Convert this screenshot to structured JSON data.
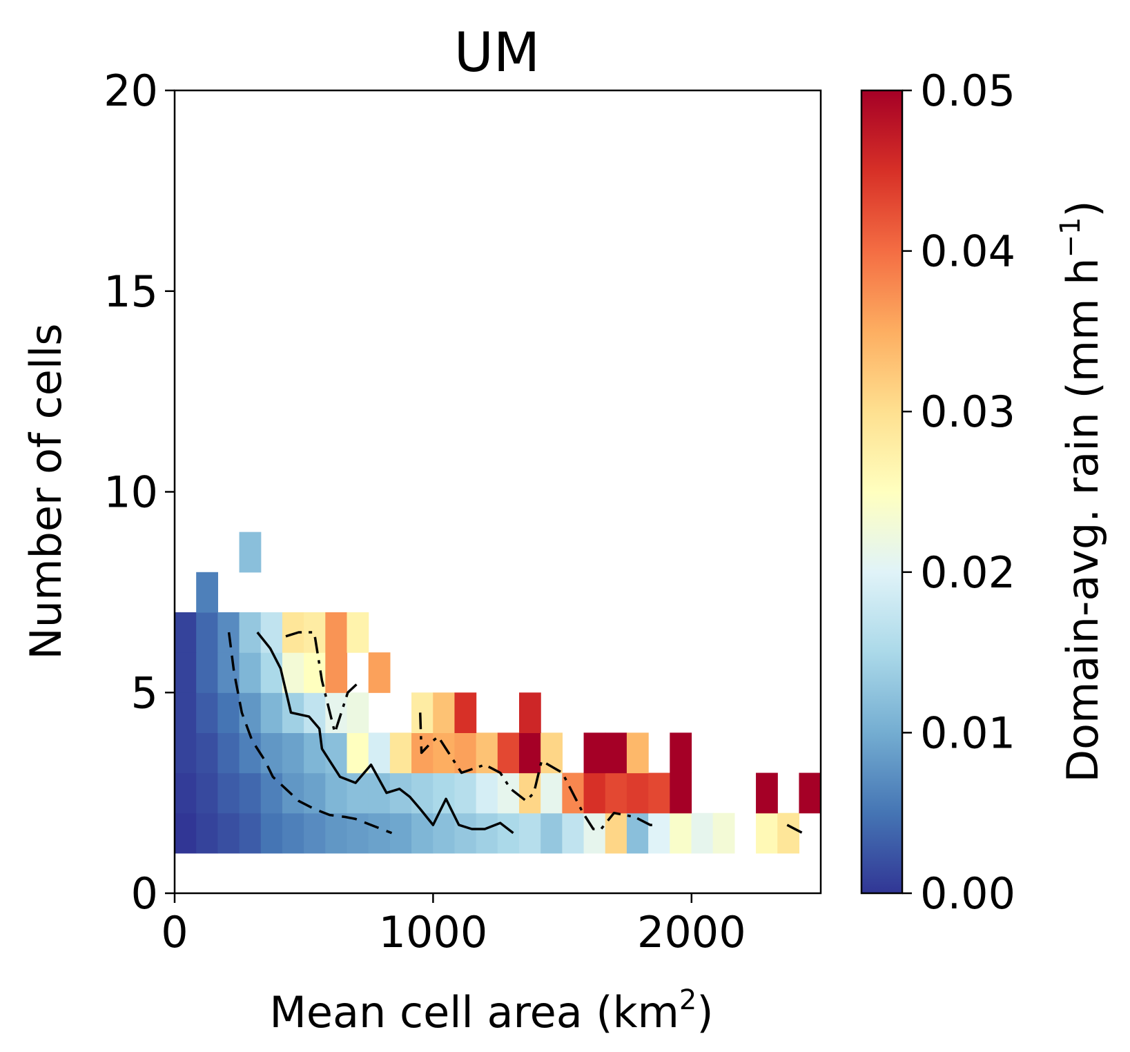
{
  "chart_data": {
    "type": "heatmap",
    "title": "UM",
    "xlabel": "Mean cell area (km",
    "xlabel_sup": "2",
    "xlabel_end": ")",
    "ylabel": "Number of cells",
    "xlim": [
      0,
      2500
    ],
    "ylim": [
      0,
      20
    ],
    "x_ticks": [
      0,
      1000,
      2000
    ],
    "x_tick_labels": [
      "0",
      "1000",
      "2000"
    ],
    "y_ticks": [
      0,
      5,
      10,
      15,
      20
    ],
    "y_tick_labels": [
      "0",
      "5",
      "10",
      "15",
      "20"
    ],
    "x_bin_width": 83.3,
    "y_bin_height": 1,
    "colorbar": {
      "label": "Domain-avg. rain (mm h",
      "label_sup": "−1",
      "label_end": ")",
      "range": [
        0,
        0.05
      ],
      "ticks": [
        0,
        0.01,
        0.02,
        0.03,
        0.04,
        0.05
      ],
      "tick_labels": [
        "0.00",
        "0.01",
        "0.02",
        "0.03",
        "0.04",
        "0.05"
      ],
      "colormap": "RdYlBu_r"
    },
    "cells": [
      [
        0,
        1,
        0.0
      ],
      [
        1,
        1,
        0.001
      ],
      [
        2,
        1,
        0.002
      ],
      [
        3,
        1,
        0.003
      ],
      [
        4,
        1,
        0.005
      ],
      [
        5,
        1,
        0.006
      ],
      [
        6,
        1,
        0.007
      ],
      [
        7,
        1,
        0.008
      ],
      [
        8,
        1,
        0.0085
      ],
      [
        9,
        1,
        0.009
      ],
      [
        10,
        1,
        0.0095
      ],
      [
        11,
        1,
        0.011
      ],
      [
        12,
        1,
        0.012
      ],
      [
        13,
        1,
        0.013
      ],
      [
        14,
        1,
        0.014
      ],
      [
        15,
        1,
        0.015
      ],
      [
        16,
        1,
        0.016
      ],
      [
        17,
        1,
        0.013
      ],
      [
        18,
        1,
        0.017
      ],
      [
        19,
        1,
        0.021
      ],
      [
        20,
        1,
        0.031
      ],
      [
        21,
        1,
        0.012
      ],
      [
        22,
        1,
        0.02
      ],
      [
        23,
        1,
        0.024
      ],
      [
        24,
        1,
        0.021
      ],
      [
        25,
        1,
        0.023
      ],
      [
        27,
        1,
        0.026
      ],
      [
        28,
        1,
        0.029
      ],
      [
        0,
        2,
        0.0005
      ],
      [
        1,
        2,
        0.0015
      ],
      [
        2,
        2,
        0.003
      ],
      [
        3,
        2,
        0.004
      ],
      [
        4,
        2,
        0.006
      ],
      [
        5,
        2,
        0.008
      ],
      [
        6,
        2,
        0.009
      ],
      [
        7,
        2,
        0.011
      ],
      [
        8,
        2,
        0.012
      ],
      [
        9,
        2,
        0.012
      ],
      [
        10,
        2,
        0.013
      ],
      [
        11,
        2,
        0.014
      ],
      [
        12,
        2,
        0.015
      ],
      [
        13,
        2,
        0.016
      ],
      [
        14,
        2,
        0.019
      ],
      [
        15,
        2,
        0.021
      ],
      [
        16,
        2,
        0.031
      ],
      [
        17,
        2,
        0.021
      ],
      [
        18,
        2,
        0.038
      ],
      [
        19,
        2,
        0.045
      ],
      [
        20,
        2,
        0.043
      ],
      [
        21,
        2,
        0.044
      ],
      [
        22,
        2,
        0.043
      ],
      [
        23,
        2,
        0.05
      ],
      [
        27,
        2,
        0.05
      ],
      [
        29,
        2,
        0.05
      ],
      [
        0,
        3,
        0.001
      ],
      [
        1,
        3,
        0.002
      ],
      [
        2,
        3,
        0.004
      ],
      [
        3,
        3,
        0.006
      ],
      [
        4,
        3,
        0.008
      ],
      [
        5,
        3,
        0.009
      ],
      [
        6,
        3,
        0.011
      ],
      [
        7,
        3,
        0.012
      ],
      [
        8,
        3,
        0.025
      ],
      [
        9,
        3,
        0.019
      ],
      [
        10,
        3,
        0.029
      ],
      [
        11,
        3,
        0.036
      ],
      [
        12,
        3,
        0.035
      ],
      [
        13,
        3,
        0.036
      ],
      [
        14,
        3,
        0.033
      ],
      [
        15,
        3,
        0.043
      ],
      [
        16,
        3,
        0.05
      ],
      [
        17,
        3,
        0.031
      ],
      [
        19,
        3,
        0.05
      ],
      [
        20,
        3,
        0.05
      ],
      [
        21,
        3,
        0.034
      ],
      [
        23,
        3,
        0.05
      ],
      [
        0,
        4,
        0.001
      ],
      [
        1,
        4,
        0.003
      ],
      [
        2,
        4,
        0.005
      ],
      [
        3,
        4,
        0.008
      ],
      [
        4,
        4,
        0.011
      ],
      [
        5,
        4,
        0.014
      ],
      [
        6,
        4,
        0.017
      ],
      [
        7,
        4,
        0.021
      ],
      [
        8,
        4,
        0.022
      ],
      [
        11,
        4,
        0.028
      ],
      [
        12,
        4,
        0.033
      ],
      [
        13,
        4,
        0.045
      ],
      [
        16,
        4,
        0.046
      ],
      [
        0,
        5,
        0.001
      ],
      [
        1,
        5,
        0.004
      ],
      [
        2,
        5,
        0.007
      ],
      [
        3,
        5,
        0.011
      ],
      [
        4,
        5,
        0.015
      ],
      [
        5,
        5,
        0.023
      ],
      [
        6,
        5,
        0.025
      ],
      [
        7,
        5,
        0.037
      ],
      [
        9,
        5,
        0.036
      ],
      [
        0,
        6,
        0.001
      ],
      [
        1,
        6,
        0.004
      ],
      [
        2,
        6,
        0.007
      ],
      [
        3,
        6,
        0.013
      ],
      [
        4,
        6,
        0.017
      ],
      [
        5,
        6,
        0.029
      ],
      [
        6,
        6,
        0.028
      ],
      [
        7,
        6,
        0.037
      ],
      [
        8,
        6,
        0.027
      ],
      [
        1,
        7,
        0.006
      ],
      [
        3,
        8,
        0.012
      ]
    ],
    "lines": [
      {
        "style": "dashed",
        "points": [
          [
            210,
            6.5
          ],
          [
            230,
            5.5
          ],
          [
            260,
            4.5
          ],
          [
            300,
            3.8
          ],
          [
            350,
            3.3
          ],
          [
            380,
            2.9
          ],
          [
            430,
            2.6
          ],
          [
            480,
            2.3
          ],
          [
            540,
            2.1
          ],
          [
            600,
            1.95
          ],
          [
            660,
            1.9
          ],
          [
            700,
            1.85
          ],
          [
            760,
            1.7
          ],
          [
            800,
            1.6
          ],
          [
            840,
            1.5
          ]
        ]
      },
      {
        "style": "solid",
        "points": [
          [
            320,
            6.5
          ],
          [
            370,
            6.1
          ],
          [
            410,
            5.6
          ],
          [
            450,
            4.5
          ],
          [
            520,
            4.4
          ],
          [
            560,
            4.1
          ],
          [
            570,
            3.6
          ],
          [
            640,
            2.9
          ],
          [
            700,
            2.75
          ],
          [
            760,
            3.2
          ],
          [
            820,
            2.5
          ],
          [
            870,
            2.6
          ],
          [
            910,
            2.4
          ],
          [
            950,
            2.1
          ],
          [
            1000,
            1.7
          ],
          [
            1050,
            2.35
          ],
          [
            1100,
            1.7
          ],
          [
            1150,
            1.6
          ],
          [
            1200,
            1.6
          ],
          [
            1260,
            1.75
          ],
          [
            1310,
            1.5
          ]
        ]
      },
      {
        "style": "dashdot",
        "points": [
          [
            430,
            6.4
          ],
          [
            480,
            6.5
          ],
          [
            540,
            6.5
          ],
          [
            570,
            5.3
          ],
          [
            620,
            4.0
          ],
          [
            670,
            5.0
          ],
          [
            720,
            5.3
          ]
        ]
      },
      {
        "style": "dashdot",
        "points": [
          [
            950,
            4.5
          ],
          [
            955,
            3.5
          ],
          [
            1000,
            3.8
          ],
          [
            1020,
            3.9
          ],
          [
            1050,
            3.6
          ],
          [
            1110,
            3.0
          ],
          [
            1200,
            3.2
          ],
          [
            1260,
            3.0
          ],
          [
            1300,
            2.6
          ],
          [
            1360,
            2.3
          ],
          [
            1390,
            2.5
          ],
          [
            1420,
            3.3
          ],
          [
            1500,
            3.0
          ],
          [
            1580,
            2.0
          ],
          [
            1620,
            1.6
          ],
          [
            1650,
            1.6
          ],
          [
            1700,
            2.0
          ],
          [
            1780,
            1.9
          ],
          [
            1840,
            1.7
          ],
          [
            1870,
            1.7
          ]
        ]
      },
      {
        "style": "dashdot",
        "points": [
          [
            2370,
            1.7
          ],
          [
            2430,
            1.5
          ]
        ]
      }
    ]
  }
}
